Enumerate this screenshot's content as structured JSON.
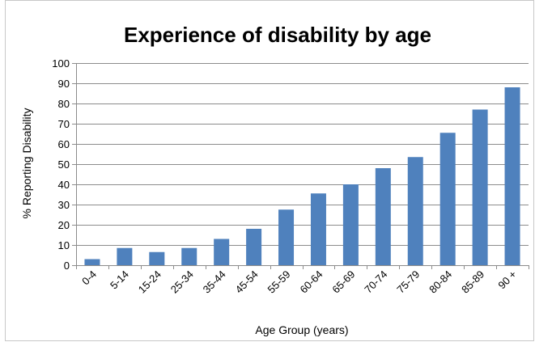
{
  "chart_data": {
    "type": "bar",
    "title": "Experience of disability by age",
    "xlabel": "Age Group (years)",
    "ylabel": "%  Reporting Disability",
    "categories": [
      "0-4",
      "5-14",
      "15-24",
      "25-34",
      "35-44",
      "45-54",
      "55-59",
      "60-64",
      "65-69",
      "70-74",
      "75-79",
      "80-84",
      "85-89",
      "90 +"
    ],
    "values": [
      3,
      8.5,
      6.5,
      8.5,
      13,
      18,
      27.5,
      35.5,
      40,
      48,
      53.5,
      65.5,
      77,
      88
    ],
    "ylim": [
      0,
      100
    ],
    "yticks": [
      "0",
      "10",
      "20",
      "30",
      "40",
      "50",
      "60",
      "70",
      "80",
      "90",
      "100"
    ],
    "grid": true,
    "legend": "none",
    "colors": {
      "bar": "#4f81bd"
    }
  }
}
